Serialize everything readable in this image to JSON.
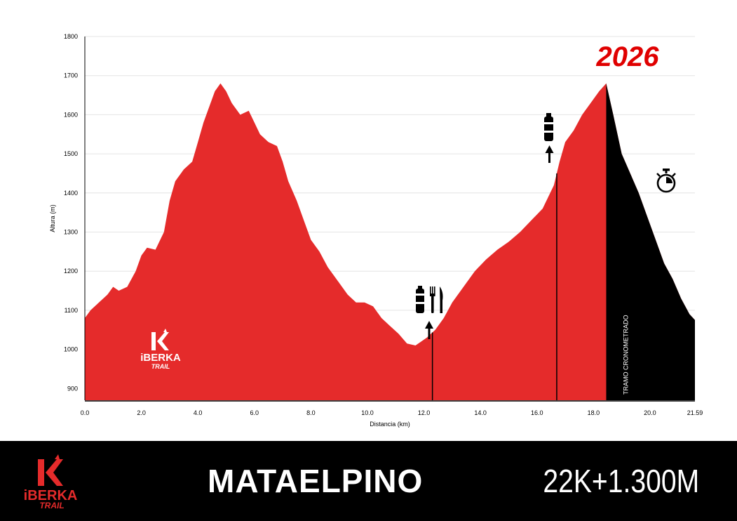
{
  "colors": {
    "profile": "#e52b2b",
    "timed_section": "#000000",
    "year": "#e00000"
  },
  "year": "2026",
  "race": {
    "name": "MATAELPINO",
    "stats": "22K+1.300M"
  },
  "logo": {
    "mark": "K",
    "word": "iBERKA",
    "subword": "TRAIL"
  },
  "icons": {
    "aid_station_food": "water-bottle-fork-knife",
    "aid_station_water": "water-bottle",
    "finish": "stopwatch"
  },
  "chart_data": {
    "type": "area",
    "xlabel": "Distancia (km)",
    "ylabel": "Altura (m)",
    "xlim": [
      0,
      21.59
    ],
    "ylim": [
      870,
      1800
    ],
    "x_ticks": [
      {
        "v": 0,
        "label": "0.0"
      },
      {
        "v": 2,
        "label": "2.0"
      },
      {
        "v": 4,
        "label": "4.0"
      },
      {
        "v": 6,
        "label": "6.0"
      },
      {
        "v": 8,
        "label": "8.0"
      },
      {
        "v": 10,
        "label": "10.0"
      },
      {
        "v": 12,
        "label": "12.0"
      },
      {
        "v": 14,
        "label": "14.0"
      },
      {
        "v": 16,
        "label": "16.0"
      },
      {
        "v": 18,
        "label": "18.0"
      },
      {
        "v": 20,
        "label": "20.0"
      },
      {
        "v": 21.59,
        "label": "21.59"
      }
    ],
    "y_ticks": [
      {
        "v": 900,
        "label": "900"
      },
      {
        "v": 1000,
        "label": "1000"
      },
      {
        "v": 1100,
        "label": "1100"
      },
      {
        "v": 1200,
        "label": "1200"
      },
      {
        "v": 1300,
        "label": "1300"
      },
      {
        "v": 1400,
        "label": "1400"
      },
      {
        "v": 1500,
        "label": "1500"
      },
      {
        "v": 1600,
        "label": "1600"
      },
      {
        "v": 1700,
        "label": "1700"
      },
      {
        "v": 1800,
        "label": "1800"
      }
    ],
    "grid": true,
    "timed_section": {
      "label": "TRAMO CRONOMETRADO",
      "start_km": 18.45,
      "end_km": 21.59
    },
    "aid_stations": [
      {
        "km": 12.3,
        "type": "water-food"
      },
      {
        "km": 16.7,
        "type": "water"
      }
    ],
    "finish_marker_km": 21.0,
    "series": [
      {
        "x": [
          0.0,
          0.2,
          0.5,
          0.8,
          1.0,
          1.2,
          1.5,
          1.8,
          2.0,
          2.2,
          2.5,
          2.8,
          3.0,
          3.2,
          3.5,
          3.8,
          4.0,
          4.2,
          4.4,
          4.6,
          4.8,
          5.0,
          5.2,
          5.5,
          5.8,
          6.0,
          6.2,
          6.5,
          6.8,
          7.0,
          7.2,
          7.5,
          7.8,
          8.0,
          8.3,
          8.6,
          9.0,
          9.3,
          9.6,
          9.9,
          10.2,
          10.5,
          10.8,
          11.1,
          11.4,
          11.7,
          11.9,
          12.1,
          12.4,
          12.7,
          13.0,
          13.4,
          13.8,
          14.2,
          14.6,
          15.0,
          15.4,
          15.8,
          16.2,
          16.6,
          16.8,
          17.0,
          17.3,
          17.6,
          17.9,
          18.2,
          18.45,
          18.7,
          19.0,
          19.3,
          19.6,
          19.9,
          20.2,
          20.5,
          20.8,
          21.1,
          21.4,
          21.59
        ],
        "y": [
          1080,
          1100,
          1120,
          1140,
          1160,
          1150,
          1160,
          1200,
          1240,
          1260,
          1255,
          1300,
          1380,
          1430,
          1460,
          1480,
          1530,
          1580,
          1620,
          1660,
          1680,
          1660,
          1630,
          1600,
          1610,
          1580,
          1550,
          1530,
          1520,
          1480,
          1430,
          1380,
          1320,
          1280,
          1250,
          1210,
          1170,
          1140,
          1120,
          1120,
          1110,
          1080,
          1060,
          1040,
          1015,
          1010,
          1020,
          1030,
          1050,
          1080,
          1120,
          1160,
          1200,
          1230,
          1255,
          1275,
          1300,
          1330,
          1360,
          1420,
          1480,
          1530,
          1560,
          1600,
          1630,
          1660,
          1680,
          1600,
          1500,
          1450,
          1400,
          1340,
          1280,
          1220,
          1180,
          1130,
          1090,
          1075
        ]
      }
    ]
  }
}
